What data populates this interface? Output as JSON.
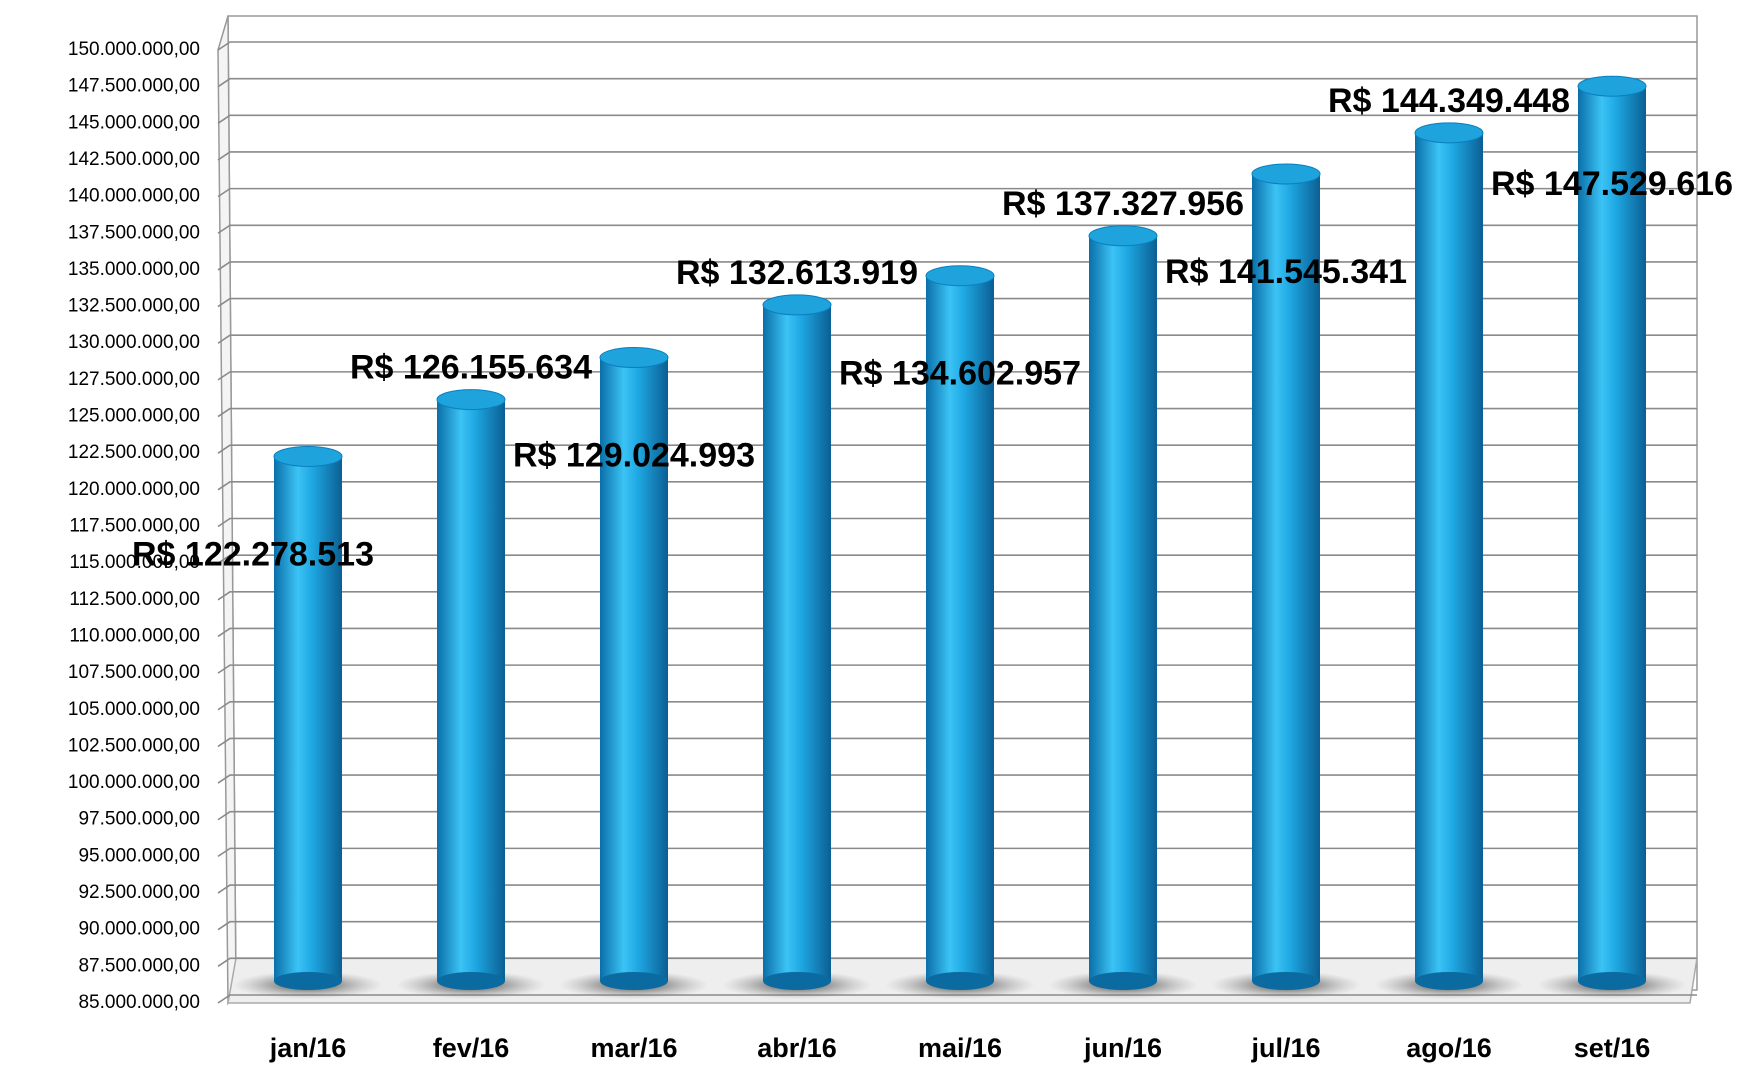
{
  "chart_data": {
    "type": "bar",
    "categories": [
      "jan/16",
      "fev/16",
      "mar/16",
      "abr/16",
      "mai/16",
      "jun/16",
      "jul/16",
      "ago/16",
      "set/16"
    ],
    "values": [
      122278513,
      126155634,
      129024993,
      132613919,
      134602957,
      137327956,
      141545341,
      144349448,
      147529616
    ],
    "value_labels": [
      "R$ 122.278.513",
      "R$ 126.155.634",
      "R$ 129.024.993",
      "R$ 132.613.919",
      "R$ 134.602.957",
      "R$ 137.327.956",
      "R$ 141.545.341",
      "R$ 144.349.448",
      "R$ 147.529.616"
    ],
    "color": "#1fa3dc",
    "ylim": [
      85000000,
      150000000
    ],
    "yticks": [
      {
        "value": 85000000,
        "label": "85.000.000,00"
      },
      {
        "value": 87500000,
        "label": "87.500.000,00"
      },
      {
        "value": 90000000,
        "label": "90.000.000,00"
      },
      {
        "value": 92500000,
        "label": "92.500.000,00"
      },
      {
        "value": 95000000,
        "label": "95.000.000,00"
      },
      {
        "value": 97500000,
        "label": "97.500.000,00"
      },
      {
        "value": 100000000,
        "label": "100.000.000,00"
      },
      {
        "value": 102500000,
        "label": "102.500.000,00"
      },
      {
        "value": 105000000,
        "label": "105.000.000,00"
      },
      {
        "value": 107500000,
        "label": "107.500.000,00"
      },
      {
        "value": 110000000,
        "label": "110.000.000,00"
      },
      {
        "value": 112500000,
        "label": "112.500.000,00"
      },
      {
        "value": 115000000,
        "label": "115.000.000,00"
      },
      {
        "value": 117500000,
        "label": "117.500.000,00"
      },
      {
        "value": 120000000,
        "label": "120.000.000,00"
      },
      {
        "value": 122500000,
        "label": "122.500.000,00"
      },
      {
        "value": 125000000,
        "label": "125.000.000,00"
      },
      {
        "value": 127500000,
        "label": "127.500.000,00"
      },
      {
        "value": 130000000,
        "label": "130.000.000,00"
      },
      {
        "value": 132500000,
        "label": "132.500.000,00"
      },
      {
        "value": 135000000,
        "label": "135.000.000,00"
      },
      {
        "value": 137500000,
        "label": "137.500.000,00"
      },
      {
        "value": 140000000,
        "label": "140.000.000,00"
      },
      {
        "value": 142500000,
        "label": "142.500.000,00"
      },
      {
        "value": 145000000,
        "label": "145.000.000,00"
      },
      {
        "value": 147500000,
        "label": "147.500.000,00"
      },
      {
        "value": 150000000,
        "label": "150.000.000,00"
      }
    ],
    "grid": true
  }
}
